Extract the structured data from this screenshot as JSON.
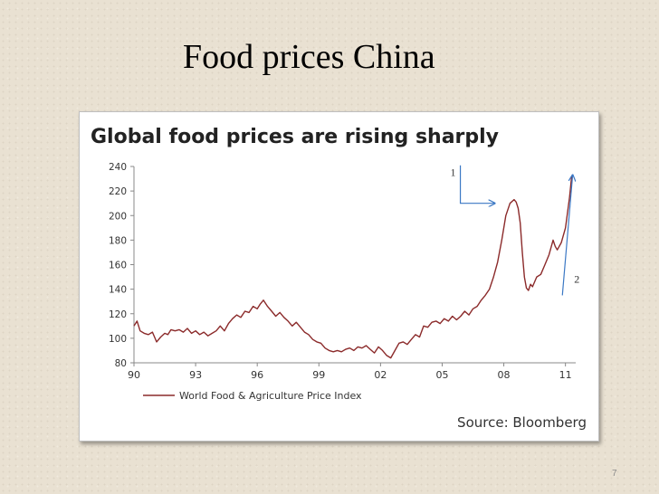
{
  "slide": {
    "title": "Food prices China",
    "page_number": "7"
  },
  "chart_data": {
    "type": "line",
    "title": "Global food prices are rising sharply",
    "source": "Source: Bloomberg",
    "x_tick_labels": [
      "90",
      "93",
      "96",
      "99",
      "02",
      "05",
      "08",
      "11"
    ],
    "y_ticks": [
      80,
      100,
      120,
      140,
      160,
      180,
      200,
      220,
      240
    ],
    "xlim": [
      1990,
      2011.5
    ],
    "ylim": [
      80,
      240
    ],
    "grid": false,
    "legend_position": "bottom-left",
    "colors": {
      "series": "#8b2a2a",
      "arrows": "#3b78c4",
      "axis": "#888888"
    },
    "series": [
      {
        "name": "World Food & Agriculture Price Index",
        "x": [
          1990.0,
          1990.15,
          1990.3,
          1990.5,
          1990.7,
          1990.9,
          1991.1,
          1991.3,
          1991.5,
          1991.65,
          1991.8,
          1992.0,
          1992.2,
          1992.4,
          1992.6,
          1992.8,
          1993.0,
          1993.2,
          1993.4,
          1993.6,
          1993.8,
          1994.0,
          1994.2,
          1994.4,
          1994.6,
          1994.8,
          1995.0,
          1995.2,
          1995.4,
          1995.6,
          1995.8,
          1996.0,
          1996.15,
          1996.3,
          1996.5,
          1996.7,
          1996.9,
          1997.1,
          1997.3,
          1997.5,
          1997.7,
          1997.9,
          1998.1,
          1998.3,
          1998.5,
          1998.7,
          1998.9,
          1999.1,
          1999.3,
          1999.5,
          1999.7,
          1999.9,
          2000.1,
          2000.3,
          2000.5,
          2000.7,
          2000.9,
          2001.1,
          2001.3,
          2001.5,
          2001.7,
          2001.9,
          2002.1,
          2002.3,
          2002.5,
          2002.7,
          2002.9,
          2003.1,
          2003.3,
          2003.5,
          2003.7,
          2003.9,
          2004.1,
          2004.3,
          2004.5,
          2004.7,
          2004.9,
          2005.1,
          2005.3,
          2005.5,
          2005.7,
          2005.9,
          2006.1,
          2006.3,
          2006.5,
          2006.7,
          2006.9,
          2007.1,
          2007.3,
          2007.5,
          2007.7,
          2007.9,
          2008.1,
          2008.3,
          2008.5,
          2008.6,
          2008.7,
          2008.8,
          2008.9,
          2009.0,
          2009.1,
          2009.2,
          2009.3,
          2009.4,
          2009.6,
          2009.8,
          2010.0,
          2010.2,
          2010.4,
          2010.5,
          2010.6,
          2010.8,
          2011.0,
          2011.2,
          2011.3
        ],
        "values": [
          110,
          114,
          106,
          104,
          103,
          105,
          97,
          101,
          104,
          103,
          107,
          106,
          107,
          105,
          108,
          104,
          106,
          103,
          105,
          102,
          104,
          106,
          110,
          106,
          112,
          116,
          119,
          117,
          122,
          121,
          126,
          124,
          128,
          131,
          126,
          122,
          118,
          121,
          117,
          114,
          110,
          113,
          109,
          105,
          103,
          99,
          97,
          96,
          92,
          90,
          89,
          90,
          89,
          91,
          92,
          90,
          93,
          92,
          94,
          91,
          88,
          93,
          90,
          86,
          84,
          90,
          96,
          97,
          95,
          99,
          103,
          101,
          110,
          109,
          113,
          114,
          112,
          116,
          114,
          118,
          115,
          118,
          122,
          119,
          124,
          126,
          131,
          135,
          140,
          150,
          162,
          180,
          200,
          210,
          213,
          211,
          206,
          194,
          170,
          150,
          141,
          139,
          144,
          142,
          150,
          152,
          160,
          168,
          180,
          175,
          172,
          178,
          190,
          215,
          232
        ]
      }
    ],
    "annotations": [
      {
        "label": "1",
        "x": 2008.0,
        "y": 210
      },
      {
        "label": "2",
        "x": 2011.0,
        "y": 145
      }
    ]
  }
}
